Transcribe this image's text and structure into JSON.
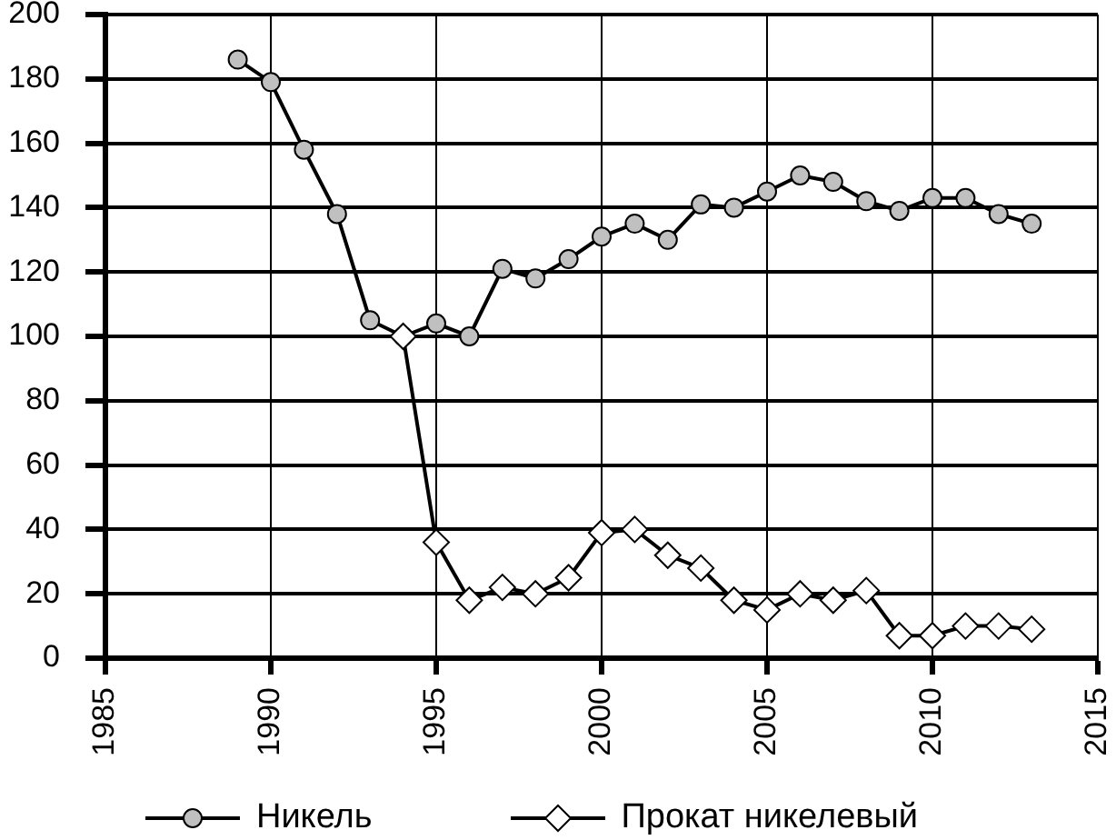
{
  "chart_data": {
    "type": "line",
    "x": [
      1989,
      1990,
      1991,
      1992,
      1993,
      1994,
      1995,
      1996,
      1997,
      1998,
      1999,
      2000,
      2001,
      2002,
      2003,
      2004,
      2005,
      2006,
      2007,
      2008,
      2009,
      2010,
      2011,
      2012,
      2013
    ],
    "xlim": [
      1985,
      2015
    ],
    "xticks": [
      1985,
      1990,
      1995,
      2000,
      2005,
      2010,
      2015
    ],
    "ylim": [
      0,
      200
    ],
    "yticks": [
      0,
      20,
      40,
      60,
      80,
      100,
      120,
      140,
      160,
      180,
      200
    ],
    "grid": true,
    "legend": "bottom",
    "series": [
      {
        "name": "Никель",
        "color": "#c0c0c0",
        "marker": "circle",
        "values": [
          186,
          179,
          158,
          138,
          105,
          100,
          104,
          100,
          121,
          118,
          124,
          131,
          135,
          130,
          141,
          140,
          145,
          150,
          148,
          142,
          139,
          143,
          143,
          138,
          135
        ]
      },
      {
        "name": "Прокат никелевый",
        "color": "#ffffff",
        "marker": "diamond",
        "x": [
          1994,
          1995,
          1996,
          1997,
          1998,
          1999,
          2000,
          2001,
          2002,
          2003,
          2004,
          2005,
          2006,
          2007,
          2008,
          2009,
          2010,
          2011,
          2012,
          2013
        ],
        "values": [
          100,
          36,
          18,
          22,
          20,
          25,
          39,
          40,
          32,
          28,
          18,
          15,
          20,
          18,
          21,
          7,
          7,
          10,
          10,
          9
        ]
      }
    ]
  }
}
